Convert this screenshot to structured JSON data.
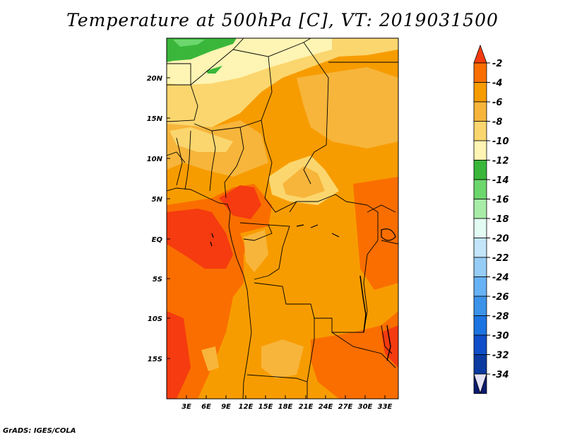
{
  "title": "Temperature at 500hPa [C], VT: 2019031500",
  "credit": "GrADS: IGES/COLA",
  "map": {
    "lon_labels": [
      "3E",
      "6E",
      "9E",
      "12E",
      "15E",
      "18E",
      "21E",
      "24E",
      "27E",
      "30E",
      "33E"
    ],
    "lat_labels": [
      "20N",
      "15N",
      "10N",
      "5N",
      "EQ",
      "5S",
      "10S",
      "15S"
    ]
  },
  "colorbar": {
    "labels": [
      "-2",
      "-4",
      "-6",
      "-8",
      "-10",
      "-12",
      "-14",
      "-16",
      "-18",
      "-20",
      "-22",
      "-24",
      "-26",
      "-28",
      "-30",
      "-32",
      "-34"
    ],
    "colors": [
      "#f53b0f",
      "#fa6e00",
      "#f79c00",
      "#f7b53b",
      "#fbd66e",
      "#fef4b3",
      "#3ab73a",
      "#6cd76c",
      "#a8eca8",
      "#e2fcf3",
      "#c2e5f9",
      "#95cdf7",
      "#67b1f5",
      "#3c93ea",
      "#1b74e1",
      "#0f4ec8",
      "#0c3aa0",
      "#0a1a6e",
      "#e4e2f5"
    ]
  }
}
